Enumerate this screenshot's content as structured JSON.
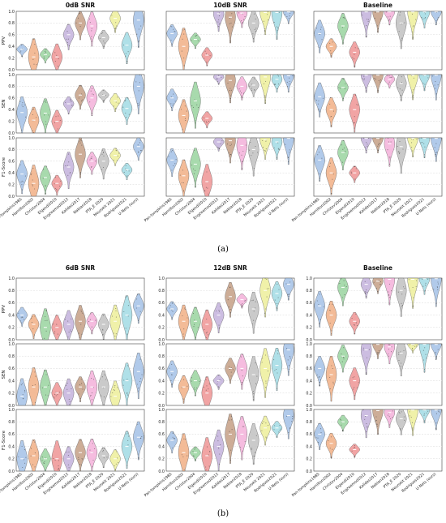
{
  "figure": {
    "caption_a": "(a)",
    "caption_b": "(b)",
    "metrics": [
      "PPV",
      "SEN",
      "F1-Score"
    ],
    "yticks": [
      "0.0",
      "0.2",
      "0.4",
      "0.6",
      "0.8",
      "1.0"
    ],
    "methods": [
      "Pan-tompkins1985",
      "Hamilton2002",
      "Christov2004",
      "Elgendi2010",
      "Engzeemod2012",
      "Kalidas2017",
      "Nabian2018",
      "PTA_E 2020",
      "Neurokit 2021",
      "Rodrigues2021",
      "U-Nets (ours)"
    ],
    "colors": [
      "#a8c4e8",
      "#f2b48c",
      "#9ed6a4",
      "#ef9a9a",
      "#c7b6de",
      "#c8a48c",
      "#f4b5dc",
      "#c4c4c4",
      "#eef0a0",
      "#a6dde6",
      "#a8c4e8"
    ]
  },
  "chart_data": [
    {
      "type": "violin",
      "panel": "a",
      "title": "0dB SNR",
      "ylim": [
        0,
        1
      ],
      "categories": [
        "Pan-tompkins1985",
        "Hamilton2002",
        "Christov2004",
        "Elgendi2010",
        "Engzeemod2012",
        "Kalidas2017",
        "Nabian2018",
        "PTA_E 2020",
        "Neurokit 2021",
        "Rodrigues2021",
        "U-Nets (ours)"
      ],
      "series": [
        {
          "name": "PPV",
          "median": [
            0.35,
            0.22,
            0.26,
            0.22,
            0.6,
            0.8,
            0.75,
            0.55,
            0.88,
            0.42,
            0.85
          ]
        },
        {
          "name": "SEN",
          "median": [
            0.35,
            0.22,
            0.34,
            0.2,
            0.5,
            0.65,
            0.6,
            0.65,
            0.55,
            0.42,
            0.8
          ]
        },
        {
          "name": "F1-Score",
          "median": [
            0.38,
            0.22,
            0.32,
            0.22,
            0.5,
            0.72,
            0.6,
            0.6,
            0.7,
            0.45,
            0.85
          ]
        }
      ]
    },
    {
      "type": "violin",
      "panel": "a",
      "title": "10dB SNR",
      "ylim": [
        0,
        1
      ],
      "categories": [
        "Pan-tompkins1985",
        "Hamilton2002",
        "Christov2004",
        "Elgendi2010",
        "Engzeemod2012",
        "Kalidas2017",
        "Nabian2018",
        "PTA_E 2020",
        "Neurokit 2021",
        "Rodrigues2021",
        "U-Nets (ours)"
      ],
      "series": [
        {
          "name": "PPV",
          "median": [
            0.62,
            0.4,
            0.52,
            0.25,
            0.96,
            0.9,
            0.97,
            0.8,
            0.98,
            0.98,
            0.99
          ]
        },
        {
          "name": "SEN",
          "median": [
            0.6,
            0.3,
            0.55,
            0.25,
            0.96,
            0.9,
            0.8,
            0.82,
            0.96,
            0.92,
            0.98
          ]
        },
        {
          "name": "F1-Score",
          "median": [
            0.62,
            0.35,
            0.55,
            0.25,
            0.93,
            0.95,
            0.87,
            0.8,
            0.97,
            0.93,
            0.99
          ]
        }
      ]
    },
    {
      "type": "violin",
      "panel": "a",
      "title": "Baseline",
      "ylim": [
        0,
        1
      ],
      "categories": [
        "Pan-tompkins1985",
        "Hamilton2002",
        "Christov2004",
        "Elgendi2010",
        "Engzeemod2012",
        "Kalidas2017",
        "Nabian2018",
        "PTA_E 2020",
        "Neurokit 2021",
        "Rodrigues2021",
        "U-Nets (ours)"
      ],
      "series": [
        {
          "name": "PPV",
          "median": [
            0.62,
            0.4,
            0.75,
            0.3,
            0.99,
            0.99,
            0.99,
            0.8,
            0.99,
            0.99,
            0.99
          ]
        },
        {
          "name": "SEN",
          "median": [
            0.62,
            0.4,
            0.78,
            0.4,
            0.99,
            0.99,
            0.92,
            0.85,
            0.99,
            0.99,
            0.99
          ]
        },
        {
          "name": "F1-Score",
          "median": [
            0.62,
            0.4,
            0.75,
            0.4,
            0.99,
            0.99,
            0.9,
            0.85,
            0.99,
            0.99,
            0.99
          ]
        }
      ]
    },
    {
      "type": "violin",
      "panel": "b",
      "title": "6dB SNR",
      "ylim": [
        0,
        1
      ],
      "categories": [
        "Pan-tompkins1985",
        "Hamilton2002",
        "Christov2004",
        "Elgendi2010",
        "Engzeemod2012",
        "Kalidas2017",
        "Nabian2018",
        "PTA_E 2020",
        "Neurokit 2021",
        "Rodrigues2021",
        "U-Nets (ours)"
      ],
      "series": [
        {
          "name": "PPV",
          "median": [
            0.4,
            0.25,
            0.2,
            0.2,
            0.25,
            0.3,
            0.3,
            0.25,
            0.3,
            0.4,
            0.55
          ]
        },
        {
          "name": "SEN",
          "median": [
            0.15,
            0.3,
            0.3,
            0.2,
            0.2,
            0.3,
            0.3,
            0.3,
            0.15,
            0.4,
            0.55
          ]
        },
        {
          "name": "F1-Score",
          "median": [
            0.2,
            0.25,
            0.2,
            0.2,
            0.2,
            0.3,
            0.3,
            0.25,
            0.2,
            0.4,
            0.55
          ]
        }
      ]
    },
    {
      "type": "violin",
      "panel": "b",
      "title": "12dB SNR",
      "ylim": [
        0,
        1
      ],
      "categories": [
        "Pan-tompkins1985",
        "Hamilton2002",
        "Christov2004",
        "Elgendi2010",
        "Engzeemod2012",
        "Kalidas2017",
        "Nabian2018",
        "PTA_E 2020",
        "Neurokit 2021",
        "Rodrigues2021",
        "U-Nets (ours)"
      ],
      "series": [
        {
          "name": "PPV",
          "median": [
            0.5,
            0.3,
            0.3,
            0.25,
            0.4,
            0.7,
            0.65,
            0.5,
            0.8,
            0.75,
            0.9
          ]
        },
        {
          "name": "SEN",
          "median": [
            0.55,
            0.3,
            0.4,
            0.2,
            0.4,
            0.6,
            0.6,
            0.5,
            0.6,
            0.65,
            0.9
          ]
        },
        {
          "name": "F1-Score",
          "median": [
            0.5,
            0.3,
            0.3,
            0.25,
            0.4,
            0.6,
            0.6,
            0.5,
            0.7,
            0.7,
            0.9
          ]
        }
      ]
    },
    {
      "type": "violin",
      "panel": "b",
      "title": "Baseline",
      "ylim": [
        0,
        1
      ],
      "categories": [
        "Pan-tompkins1985",
        "Hamilton2002",
        "Christov2004",
        "Elgendi2010",
        "Engzeemod2012",
        "Kalidas2017",
        "Nabian2018",
        "PTA_E 2020",
        "Neurokit 2021",
        "Rodrigues2021",
        "U-Nets (ours)"
      ],
      "series": [
        {
          "name": "PPV",
          "median": [
            0.55,
            0.4,
            0.85,
            0.3,
            0.9,
            0.95,
            0.98,
            0.8,
            0.98,
            0.99,
            0.99
          ]
        },
        {
          "name": "SEN",
          "median": [
            0.6,
            0.5,
            0.8,
            0.4,
            0.9,
            0.99,
            0.95,
            0.85,
            0.99,
            0.99,
            0.99
          ]
        },
        {
          "name": "F1-Score",
          "median": [
            0.6,
            0.45,
            0.8,
            0.35,
            0.9,
            0.98,
            0.95,
            0.85,
            0.99,
            0.99,
            0.99
          ]
        }
      ]
    }
  ]
}
